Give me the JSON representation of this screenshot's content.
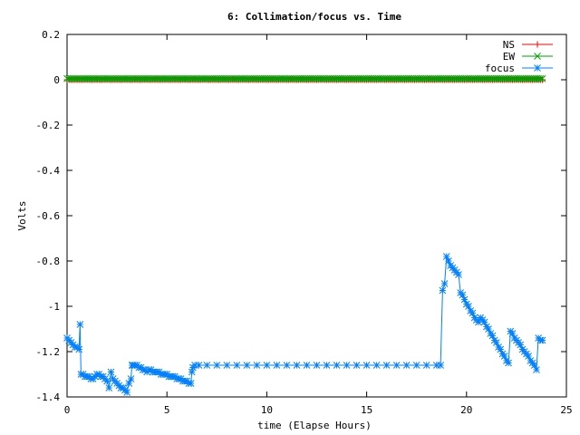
{
  "chart_data": {
    "type": "line",
    "title": "6: Collimation/focus vs. Time",
    "xlabel": "time (Elapse Hours)",
    "ylabel": "Volts",
    "xlim": [
      0,
      25
    ],
    "ylim": [
      -1.4,
      0.2
    ],
    "xticks": [
      0,
      5,
      10,
      15,
      20,
      25
    ],
    "yticks": [
      0.2,
      0,
      -0.2,
      -0.4,
      -0.6,
      -0.8,
      -1,
      -1.2,
      -1.4
    ],
    "xtick_labels": [
      "0",
      "5",
      "10",
      "15",
      "20",
      "25"
    ],
    "ytick_labels": [
      "0.2",
      "0",
      "-0.2",
      "-0.4",
      "-0.6",
      "-0.8",
      "-1",
      "-1.2",
      "-1.4"
    ],
    "grid": false,
    "legend_position": "top-right",
    "series": [
      {
        "name": "NS",
        "color": "#ff0000",
        "marker": "plus",
        "x_range": [
          0,
          23.8
        ],
        "step": 0.1,
        "constant_y": 0.0
      },
      {
        "name": "EW",
        "color": "#00a000",
        "marker": "cross",
        "x_range": [
          0,
          23.8
        ],
        "step": 0.1,
        "constant_y": 0.005
      },
      {
        "name": "focus",
        "color": "#0080ff",
        "marker": "star",
        "points": [
          [
            0.0,
            -1.14
          ],
          [
            0.1,
            -1.15
          ],
          [
            0.2,
            -1.16
          ],
          [
            0.3,
            -1.17
          ],
          [
            0.4,
            -1.18
          ],
          [
            0.5,
            -1.18
          ],
          [
            0.6,
            -1.19
          ],
          [
            0.65,
            -1.08
          ],
          [
            0.7,
            -1.3
          ],
          [
            0.8,
            -1.3
          ],
          [
            0.9,
            -1.31
          ],
          [
            1.0,
            -1.31
          ],
          [
            1.1,
            -1.31
          ],
          [
            1.2,
            -1.32
          ],
          [
            1.3,
            -1.32
          ],
          [
            1.4,
            -1.31
          ],
          [
            1.5,
            -1.3
          ],
          [
            1.6,
            -1.3
          ],
          [
            1.7,
            -1.31
          ],
          [
            1.8,
            -1.31
          ],
          [
            1.9,
            -1.32
          ],
          [
            2.0,
            -1.33
          ],
          [
            2.1,
            -1.36
          ],
          [
            2.2,
            -1.29
          ],
          [
            2.3,
            -1.32
          ],
          [
            2.4,
            -1.33
          ],
          [
            2.5,
            -1.34
          ],
          [
            2.6,
            -1.35
          ],
          [
            2.7,
            -1.36
          ],
          [
            2.8,
            -1.36
          ],
          [
            2.9,
            -1.37
          ],
          [
            3.0,
            -1.38
          ],
          [
            3.1,
            -1.34
          ],
          [
            3.2,
            -1.32
          ],
          [
            3.25,
            -1.26
          ],
          [
            3.3,
            -1.26
          ],
          [
            3.4,
            -1.26
          ],
          [
            3.5,
            -1.26
          ],
          [
            3.6,
            -1.27
          ],
          [
            3.7,
            -1.27
          ],
          [
            3.8,
            -1.28
          ],
          [
            3.9,
            -1.28
          ],
          [
            4.0,
            -1.29
          ],
          [
            4.1,
            -1.28
          ],
          [
            4.2,
            -1.28
          ],
          [
            4.3,
            -1.29
          ],
          [
            4.4,
            -1.29
          ],
          [
            4.5,
            -1.29
          ],
          [
            4.6,
            -1.29
          ],
          [
            4.7,
            -1.3
          ],
          [
            4.8,
            -1.3
          ],
          [
            4.9,
            -1.3
          ],
          [
            5.0,
            -1.3
          ],
          [
            5.1,
            -1.31
          ],
          [
            5.2,
            -1.31
          ],
          [
            5.3,
            -1.31
          ],
          [
            5.4,
            -1.31
          ],
          [
            5.5,
            -1.32
          ],
          [
            5.6,
            -1.32
          ],
          [
            5.7,
            -1.32
          ],
          [
            5.8,
            -1.33
          ],
          [
            5.9,
            -1.33
          ],
          [
            6.0,
            -1.33
          ],
          [
            6.1,
            -1.34
          ],
          [
            6.2,
            -1.34
          ],
          [
            6.25,
            -1.29
          ],
          [
            6.3,
            -1.27
          ],
          [
            6.4,
            -1.26
          ],
          [
            6.6,
            -1.26
          ],
          [
            7.0,
            -1.26
          ],
          [
            7.5,
            -1.26
          ],
          [
            8.0,
            -1.26
          ],
          [
            8.5,
            -1.26
          ],
          [
            9.0,
            -1.26
          ],
          [
            9.5,
            -1.26
          ],
          [
            10.0,
            -1.26
          ],
          [
            10.5,
            -1.26
          ],
          [
            11.0,
            -1.26
          ],
          [
            11.5,
            -1.26
          ],
          [
            12.0,
            -1.26
          ],
          [
            12.5,
            -1.26
          ],
          [
            13.0,
            -1.26
          ],
          [
            13.5,
            -1.26
          ],
          [
            14.0,
            -1.26
          ],
          [
            14.5,
            -1.26
          ],
          [
            15.0,
            -1.26
          ],
          [
            15.5,
            -1.26
          ],
          [
            16.0,
            -1.26
          ],
          [
            16.5,
            -1.26
          ],
          [
            17.0,
            -1.26
          ],
          [
            17.5,
            -1.26
          ],
          [
            18.0,
            -1.26
          ],
          [
            18.5,
            -1.26
          ],
          [
            18.7,
            -1.26
          ],
          [
            18.8,
            -0.93
          ],
          [
            18.9,
            -0.9
          ],
          [
            19.0,
            -0.78
          ],
          [
            19.1,
            -0.8
          ],
          [
            19.2,
            -0.82
          ],
          [
            19.3,
            -0.83
          ],
          [
            19.4,
            -0.84
          ],
          [
            19.5,
            -0.85
          ],
          [
            19.6,
            -0.86
          ],
          [
            19.7,
            -0.94
          ],
          [
            19.8,
            -0.95
          ],
          [
            19.9,
            -0.97
          ],
          [
            20.0,
            -0.99
          ],
          [
            20.1,
            -1.0
          ],
          [
            20.2,
            -1.02
          ],
          [
            20.3,
            -1.03
          ],
          [
            20.4,
            -1.05
          ],
          [
            20.5,
            -1.06
          ],
          [
            20.6,
            -1.07
          ],
          [
            20.7,
            -1.05
          ],
          [
            20.8,
            -1.06
          ],
          [
            20.9,
            -1.07
          ],
          [
            21.0,
            -1.09
          ],
          [
            21.1,
            -1.1
          ],
          [
            21.2,
            -1.12
          ],
          [
            21.3,
            -1.13
          ],
          [
            21.4,
            -1.15
          ],
          [
            21.5,
            -1.16
          ],
          [
            21.6,
            -1.18
          ],
          [
            21.7,
            -1.19
          ],
          [
            21.8,
            -1.21
          ],
          [
            21.9,
            -1.22
          ],
          [
            22.0,
            -1.24
          ],
          [
            22.1,
            -1.25
          ],
          [
            22.2,
            -1.11
          ],
          [
            22.3,
            -1.12
          ],
          [
            22.4,
            -1.14
          ],
          [
            22.5,
            -1.15
          ],
          [
            22.6,
            -1.16
          ],
          [
            22.7,
            -1.17
          ],
          [
            22.8,
            -1.19
          ],
          [
            22.9,
            -1.2
          ],
          [
            23.0,
            -1.21
          ],
          [
            23.1,
            -1.22
          ],
          [
            23.2,
            -1.24
          ],
          [
            23.3,
            -1.25
          ],
          [
            23.4,
            -1.26
          ],
          [
            23.5,
            -1.28
          ],
          [
            23.6,
            -1.14
          ],
          [
            23.7,
            -1.15
          ],
          [
            23.8,
            -1.15
          ]
        ]
      }
    ]
  }
}
